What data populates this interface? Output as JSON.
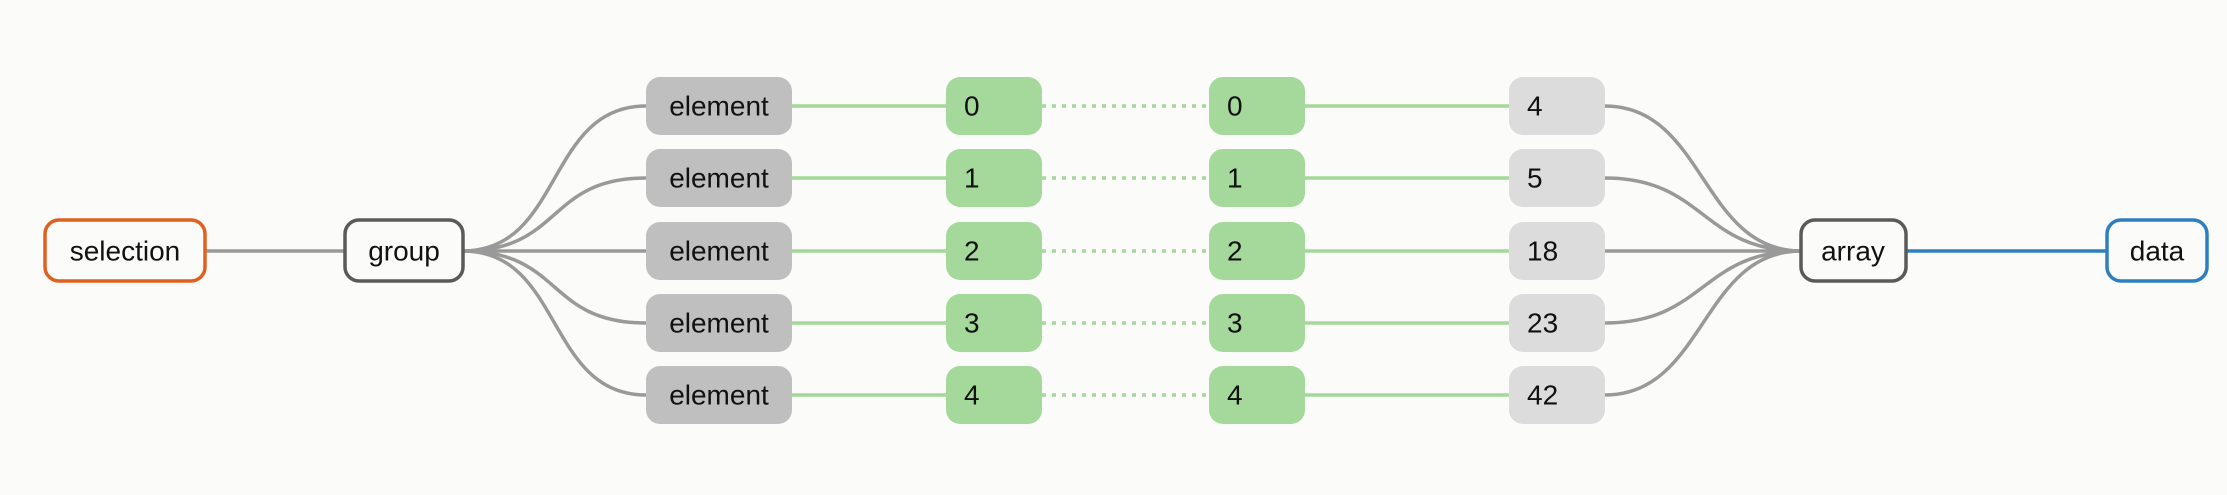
{
  "nodes": {
    "selection": "selection",
    "group": "group",
    "array": "array",
    "data": "data"
  },
  "elements": [
    "element",
    "element",
    "element",
    "element",
    "element"
  ],
  "indices_left": [
    "0",
    "1",
    "2",
    "3",
    "4"
  ],
  "indices_right": [
    "0",
    "1",
    "2",
    "3",
    "4"
  ],
  "values": [
    "4",
    "5",
    "18",
    "23",
    "42"
  ],
  "colors": {
    "selection_border": "#e0611f",
    "data_border": "#2e7fbf",
    "data_line": "#2e7fbf",
    "dark_border": "#5a5a5a",
    "element_fill": "#bfbfbf",
    "index_fill": "#a5d89b",
    "value_fill": "#dcdcdc",
    "gray_line": "#999999",
    "green_line": "#a5d89b",
    "background": "#fbfbf9"
  }
}
